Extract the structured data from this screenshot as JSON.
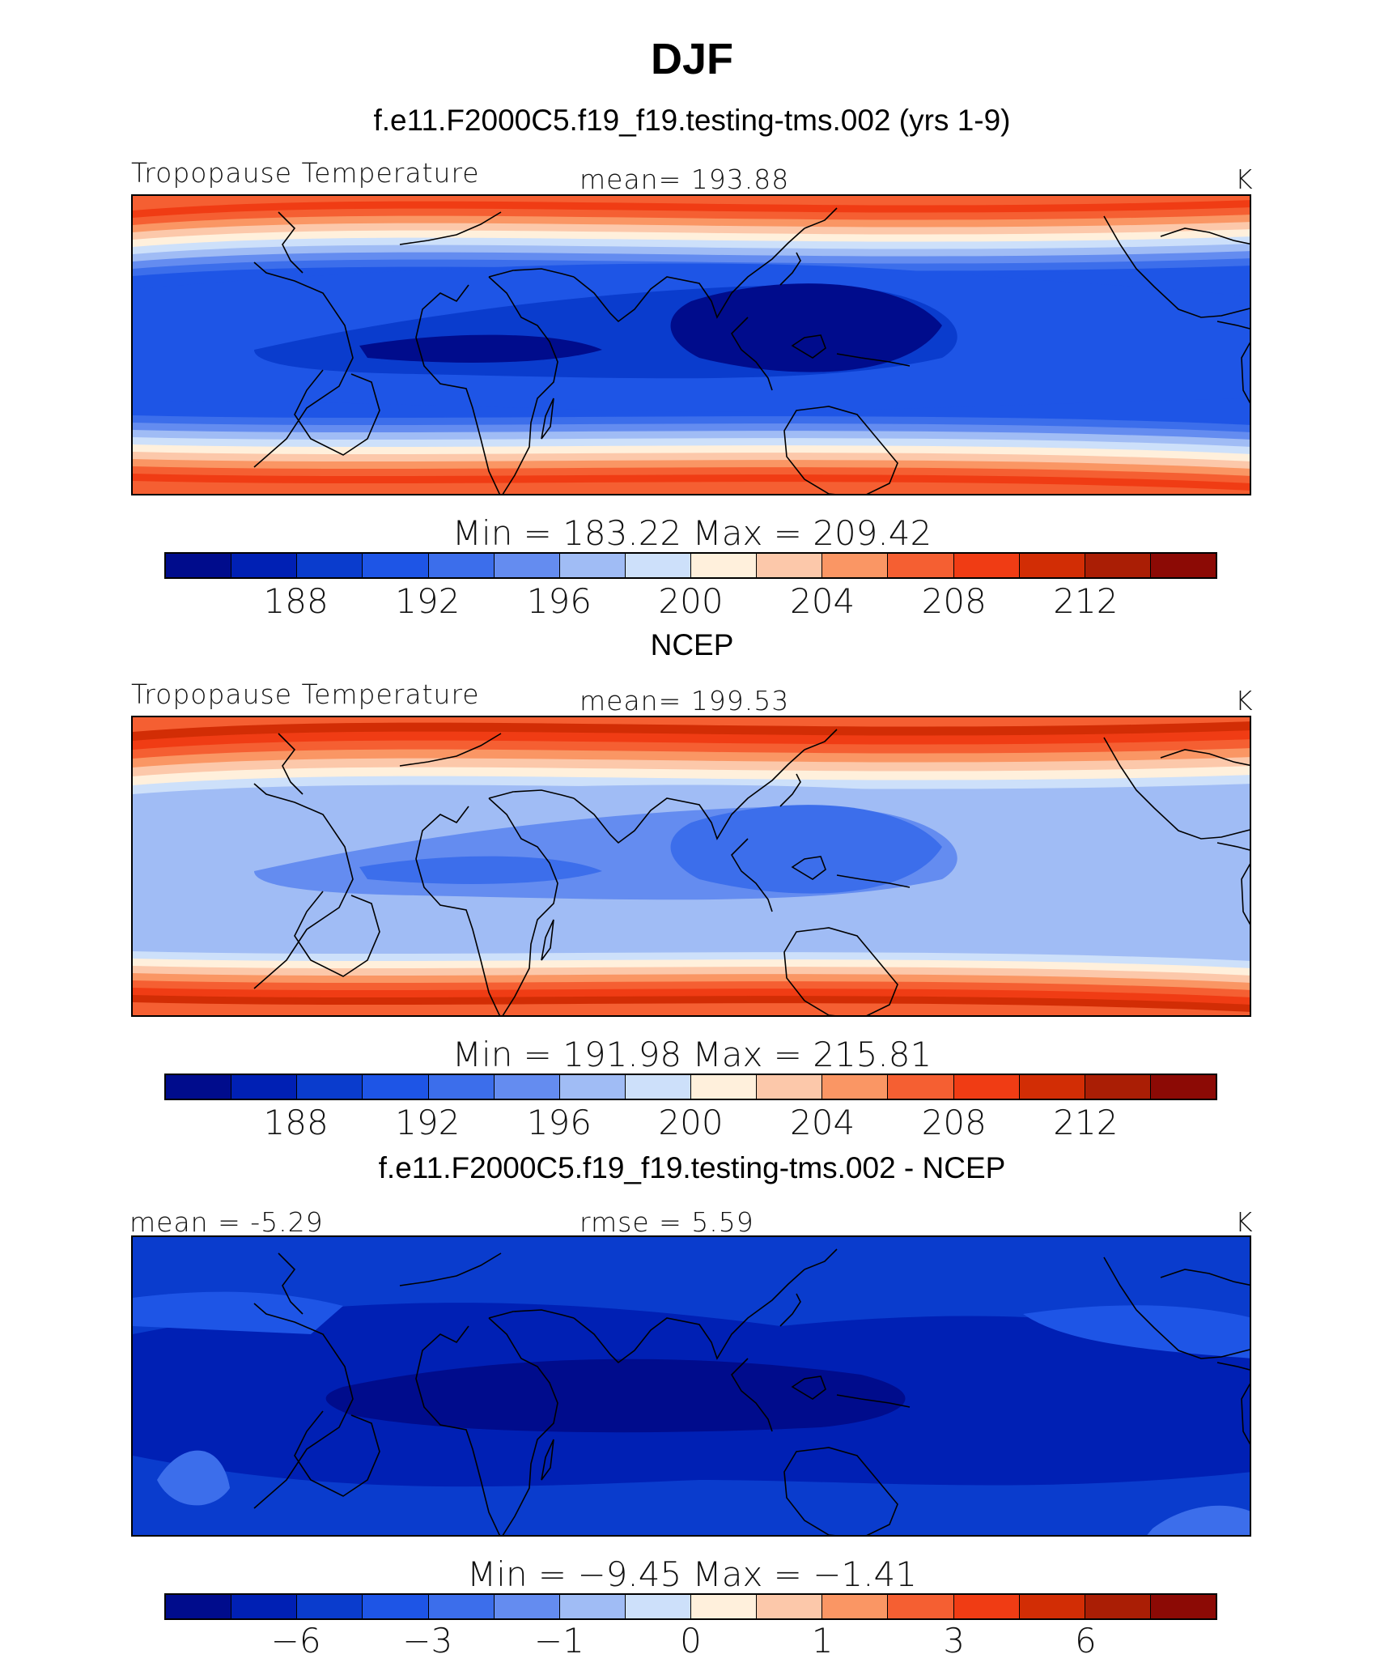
{
  "title": "DJF",
  "palette": [
    "#000c8c",
    "#0020b4",
    "#0a3ccd",
    "#1e55e6",
    "#3c6eeb",
    "#648cf0",
    "#a0bcf5",
    "#cde0fa",
    "#fff0dc",
    "#fcc8aa",
    "#fa9664",
    "#f55f32",
    "#f03c14",
    "#d22d05",
    "#aa1e05",
    "#8c0a05"
  ],
  "panels": [
    {
      "title": "f.e11.F2000C5.f19_f19.testing-tms.002 (yrs 1-9)",
      "left_label": "Tropopause Temperature",
      "center_label": "mean= 193.88",
      "right_label": "K",
      "minmax": "Min = 183.22 Max = 209.42",
      "ticks": [
        "188",
        "192",
        "196",
        "200",
        "204",
        "208",
        "212"
      ],
      "tick_positions": [
        2,
        4,
        6,
        8,
        10,
        12,
        14
      ],
      "map_colors": {
        "deep": "#000c8c",
        "mid": "#0a3ccd",
        "trop": "#1e55e6",
        "warm": "#f55f32",
        "hot": "#f03c14"
      }
    },
    {
      "title": "NCEP",
      "left_label": "Tropopause Temperature",
      "center_label": "mean= 199.53",
      "right_label": "K",
      "minmax": "Min = 191.98 Max = 215.81",
      "ticks": [
        "188",
        "192",
        "196",
        "200",
        "204",
        "208",
        "212"
      ],
      "tick_positions": [
        2,
        4,
        6,
        8,
        10,
        12,
        14
      ],
      "map_colors": {
        "deep": "#3c6eeb",
        "mid": "#648cf0",
        "trop": "#a0bcf5",
        "warm": "#f55f32",
        "hot": "#d22d05"
      }
    },
    {
      "title": "f.e11.F2000C5.f19_f19.testing-tms.002 - NCEP",
      "left_label": "mean =  -5.29",
      "center_label": "rmse =    5.59",
      "right_label": "K",
      "minmax": "Min =   −9.45 Max =   −1.41",
      "ticks": [
        "−6",
        "−3",
        "−1",
        "0",
        "1",
        "3",
        "6"
      ],
      "tick_positions": [
        2,
        4,
        6,
        8,
        10,
        12,
        14
      ],
      "map_colors": {
        "deep": "#000c8c",
        "mid": "#0020b4",
        "trop": "#1e55e6",
        "warm": "#3c6eeb",
        "hot": "#0a3ccd"
      }
    }
  ]
}
